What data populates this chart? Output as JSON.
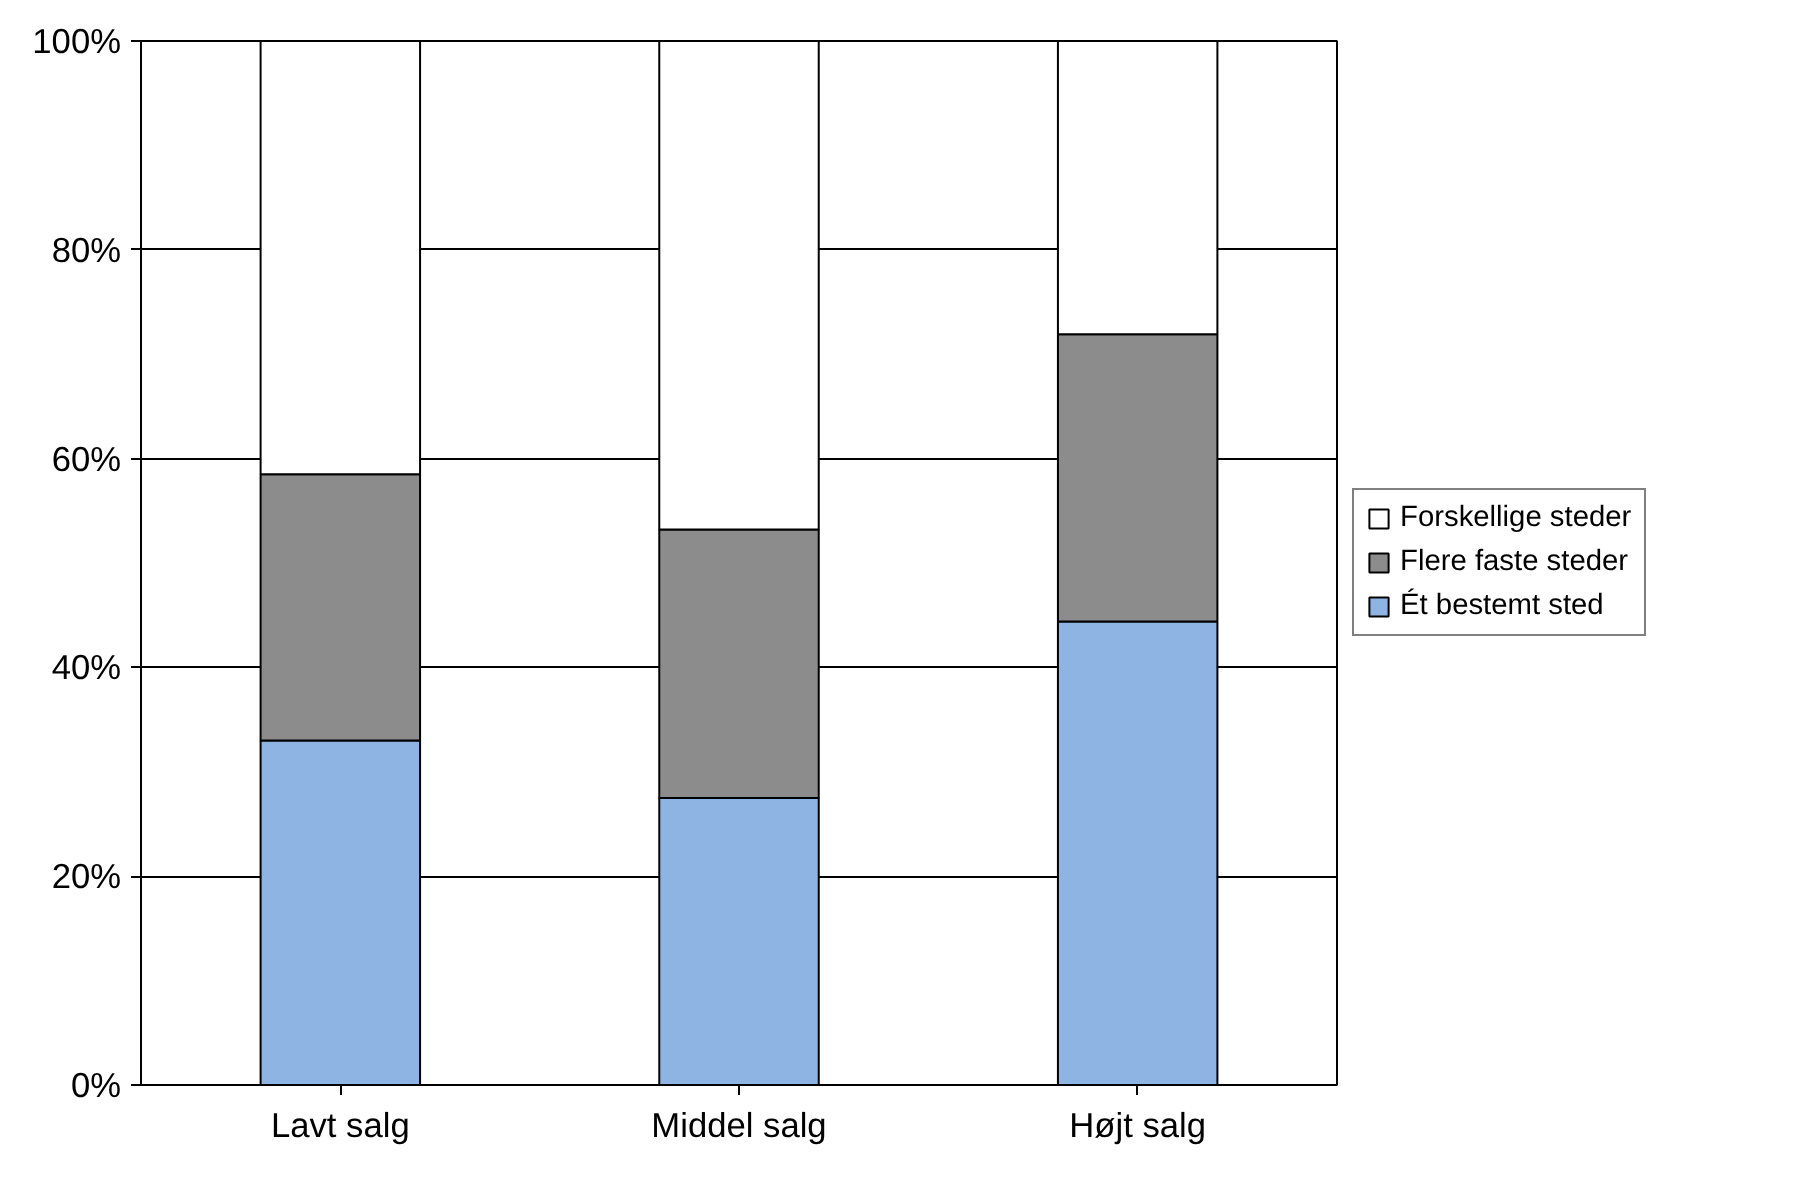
{
  "chart_data": {
    "type": "bar",
    "stacked": true,
    "categories": [
      "Lavt salg",
      "Middel salg",
      "Højt salg"
    ],
    "series": [
      {
        "name": "Ét bestemt sted",
        "color": "#8eb4e3",
        "values": [
          33,
          27.5,
          44.4
        ]
      },
      {
        "name": "Flere faste steder",
        "color": "#8c8c8c",
        "values": [
          25.5,
          25.7,
          27.5
        ]
      },
      {
        "name": "Forskellige steder",
        "color": "#ffffff",
        "values": [
          41.5,
          46.8,
          28.1
        ]
      }
    ],
    "ylim": [
      0,
      100
    ],
    "yticks": [
      {
        "value": 0,
        "label": "0%"
      },
      {
        "value": 20,
        "label": "20%"
      },
      {
        "value": 40,
        "label": "40%"
      },
      {
        "value": 60,
        "label": "60%"
      },
      {
        "value": 80,
        "label": "80%"
      },
      {
        "value": 100,
        "label": "100%"
      }
    ],
    "grid": "y",
    "legend": "right"
  }
}
